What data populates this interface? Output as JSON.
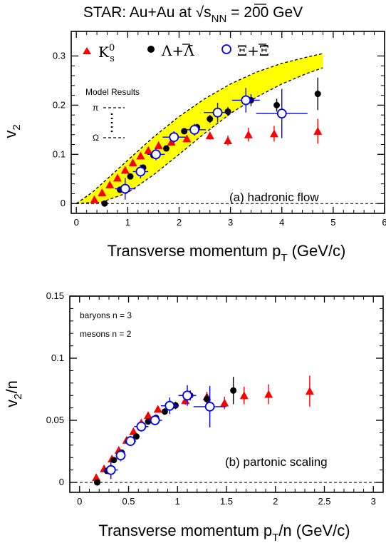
{
  "figure_title": "STAR: Au+Au at √s",
  "figure_title_sub": "NN",
  "figure_title_tail": " = 200 GeV",
  "chart_data": [
    {
      "type": "scatter",
      "id": "top",
      "title": "",
      "xlabel": "Transverse momentum p",
      "xlabel_sub": "T",
      "xlabel_tail": " (GeV/c)",
      "ylabel": "v",
      "ylabel_sub": "2",
      "xlim": [
        -0.1,
        6.0
      ],
      "ylim": [
        -0.02,
        0.35
      ],
      "xticks": [
        0,
        1,
        2,
        3,
        4,
        5,
        6
      ],
      "xtick_labels": [
        "0",
        "1",
        "2",
        "3",
        "4",
        "5",
        "6"
      ],
      "yticks": [
        0,
        0.1,
        0.2,
        0.3
      ],
      "ytick_labels": [
        "0",
        "0.1",
        "0.2",
        "0.3"
      ],
      "annotation": "(a) hadronic flow",
      "legend_position": "top",
      "legend": [
        {
          "label": "K",
          "sup": "0",
          "sub": "s",
          "series": "kshort"
        },
        {
          "label": "Λ+Λ̄",
          "series": "lambda"
        },
        {
          "label": "Ξ+Ξ̄",
          "series": "xi"
        }
      ],
      "model": {
        "title": "Model Results",
        "top_label": "π",
        "bottom_label": "Ω",
        "band_color": "#ffff00",
        "band_upper": [
          [
            0.0,
            0.0
          ],
          [
            0.3,
            0.022
          ],
          [
            0.6,
            0.05
          ],
          [
            1.0,
            0.088
          ],
          [
            1.5,
            0.135
          ],
          [
            2.0,
            0.177
          ],
          [
            2.5,
            0.213
          ],
          [
            3.0,
            0.243
          ],
          [
            3.5,
            0.267
          ],
          [
            4.0,
            0.285
          ],
          [
            4.5,
            0.298
          ],
          [
            4.8,
            0.305
          ]
        ],
        "band_lower": [
          [
            0.0,
            0.0
          ],
          [
            0.5,
            0.003
          ],
          [
            1.0,
            0.022
          ],
          [
            1.5,
            0.058
          ],
          [
            2.0,
            0.1
          ],
          [
            2.5,
            0.143
          ],
          [
            3.0,
            0.183
          ],
          [
            3.5,
            0.216
          ],
          [
            4.0,
            0.243
          ],
          [
            4.5,
            0.265
          ],
          [
            4.8,
            0.276
          ]
        ]
      },
      "series": [
        {
          "id": "kshort",
          "marker": "triangle",
          "color": "#ff0000",
          "points": [
            [
              0.35,
              0.008,
              0.003
            ],
            [
              0.5,
              0.022,
              0.003
            ],
            [
              0.65,
              0.038,
              0.003
            ],
            [
              0.8,
              0.052,
              0.003
            ],
            [
              0.95,
              0.068,
              0.003
            ],
            [
              1.1,
              0.083,
              0.004
            ],
            [
              1.25,
              0.097,
              0.004
            ],
            [
              1.4,
              0.108,
              0.004
            ],
            [
              1.6,
              0.118,
              0.005
            ],
            [
              1.85,
              0.125,
              0.006
            ],
            [
              2.15,
              0.132,
              0.007
            ],
            [
              2.6,
              0.138,
              0.008
            ],
            [
              2.95,
              0.128,
              0.01
            ],
            [
              3.35,
              0.14,
              0.014
            ],
            [
              3.85,
              0.142,
              0.016
            ],
            [
              4.7,
              0.147,
              0.025
            ]
          ]
        },
        {
          "id": "lambda",
          "marker": "filled-circle",
          "color": "#000000",
          "points": [
            [
              0.55,
              0.0,
              0.004
            ],
            [
              0.85,
              0.028,
              0.004
            ],
            [
              1.05,
              0.055,
              0.004
            ],
            [
              1.3,
              0.073,
              0.004
            ],
            [
              1.5,
              0.098,
              0.004
            ],
            [
              1.75,
              0.112,
              0.005
            ],
            [
              2.1,
              0.147,
              0.006
            ],
            [
              2.35,
              0.155,
              0.007
            ],
            [
              2.6,
              0.172,
              0.008
            ],
            [
              2.95,
              0.187,
              0.009
            ],
            [
              3.4,
              0.21,
              0.012
            ],
            [
              3.9,
              0.2,
              0.013
            ],
            [
              4.7,
              0.223,
              0.033
            ]
          ]
        },
        {
          "id": "xi",
          "marker": "open-circle",
          "color": "#0000ff",
          "points": [
            [
              0.95,
              0.03,
              0.022,
              0.2
            ],
            [
              1.25,
              0.065,
              0.014,
              0.15
            ],
            [
              1.55,
              0.1,
              0.012,
              0.17
            ],
            [
              1.9,
              0.135,
              0.012,
              0.22
            ],
            [
              2.3,
              0.15,
              0.012,
              0.22
            ],
            [
              2.75,
              0.185,
              0.02,
              0.27
            ],
            [
              3.3,
              0.21,
              0.025,
              0.27
            ],
            [
              4.0,
              0.183,
              0.05,
              0.5
            ]
          ]
        }
      ]
    },
    {
      "type": "scatter",
      "id": "bottom",
      "title": "",
      "xlabel": "Transverse momentum p",
      "xlabel_sub": "T",
      "xlabel_tail": "/n (GeV/c)",
      "ylabel": "v",
      "ylabel_sub": "2",
      "ylabel_tail": "/n",
      "xlim": [
        -0.1,
        3.1
      ],
      "ylim": [
        -0.008,
        0.15
      ],
      "xticks": [
        0,
        0.5,
        1,
        1.5,
        2,
        2.5,
        3
      ],
      "xtick_labels": [
        "0",
        "0.5",
        "1",
        "1.5",
        "2",
        "2.5",
        "3"
      ],
      "yticks": [
        0,
        0.05,
        0.1,
        0.15
      ],
      "ytick_labels": [
        "0",
        "0.05",
        "0.1",
        "0.15"
      ],
      "annotation": "(b) partonic scaling",
      "notes": [
        "baryons n = 3",
        "mesons n = 2"
      ],
      "series": [
        {
          "id": "kshort",
          "marker": "triangle",
          "color": "#ff0000",
          "points": [
            [
              0.17,
              0.004,
              0.0015
            ],
            [
              0.25,
              0.011,
              0.0015
            ],
            [
              0.33,
              0.019,
              0.0015
            ],
            [
              0.4,
              0.026,
              0.0015
            ],
            [
              0.48,
              0.034,
              0.0015
            ],
            [
              0.55,
              0.041,
              0.0018
            ],
            [
              0.63,
              0.048,
              0.0018
            ],
            [
              0.7,
              0.054,
              0.002
            ],
            [
              0.8,
              0.059,
              0.0025
            ],
            [
              0.93,
              0.0625,
              0.003
            ],
            [
              1.08,
              0.066,
              0.0035
            ],
            [
              1.3,
              0.069,
              0.004
            ],
            [
              1.48,
              0.064,
              0.005
            ],
            [
              1.68,
              0.07,
              0.007
            ],
            [
              1.93,
              0.071,
              0.008
            ],
            [
              2.35,
              0.0735,
              0.0125
            ]
          ]
        },
        {
          "id": "lambda",
          "marker": "filled-circle",
          "color": "#000000",
          "points": [
            [
              0.18,
              0.0,
              0.0013
            ],
            [
              0.28,
              0.0093,
              0.0013
            ],
            [
              0.35,
              0.018,
              0.0013
            ],
            [
              0.43,
              0.024,
              0.0013
            ],
            [
              0.5,
              0.033,
              0.0013
            ],
            [
              0.58,
              0.037,
              0.0017
            ],
            [
              0.7,
              0.049,
              0.002
            ],
            [
              0.78,
              0.052,
              0.0023
            ],
            [
              0.87,
              0.057,
              0.0027
            ],
            [
              0.98,
              0.062,
              0.003
            ],
            [
              1.13,
              0.07,
              0.004
            ],
            [
              1.3,
              0.067,
              0.0043
            ],
            [
              1.57,
              0.074,
              0.011
            ]
          ]
        },
        {
          "id": "xi",
          "marker": "open-circle",
          "color": "#0000ff",
          "points": [
            [
              0.32,
              0.01,
              0.0073,
              0.07
            ],
            [
              0.42,
              0.0217,
              0.0047,
              0.05
            ],
            [
              0.52,
              0.0333,
              0.004,
              0.057
            ],
            [
              0.63,
              0.045,
              0.004,
              0.073
            ],
            [
              0.77,
              0.05,
              0.004,
              0.073
            ],
            [
              0.92,
              0.0617,
              0.0067,
              0.09
            ],
            [
              1.1,
              0.07,
              0.0083,
              0.09
            ],
            [
              1.33,
              0.061,
              0.0167,
              0.167
            ]
          ]
        }
      ]
    }
  ]
}
